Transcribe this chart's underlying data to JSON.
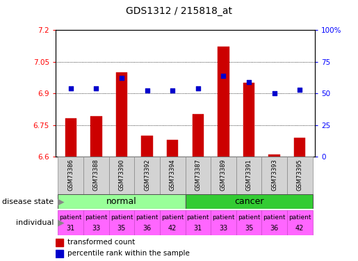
{
  "title": "GDS1312 / 215818_at",
  "samples": [
    "GSM73386",
    "GSM73388",
    "GSM73390",
    "GSM73392",
    "GSM73394",
    "GSM73387",
    "GSM73389",
    "GSM73391",
    "GSM73393",
    "GSM73395"
  ],
  "transformed_counts": [
    6.78,
    6.79,
    7.0,
    6.7,
    6.68,
    6.8,
    7.12,
    6.95,
    6.61,
    6.69
  ],
  "percentile_ranks": [
    54,
    54,
    62,
    52,
    52,
    54,
    64,
    59,
    50,
    53
  ],
  "ylim_left": [
    6.6,
    7.2
  ],
  "ylim_right": [
    0,
    100
  ],
  "yticks_left": [
    6.6,
    6.75,
    6.9,
    7.05,
    7.2
  ],
  "yticks_right": [
    0,
    25,
    50,
    75,
    100
  ],
  "ytick_labels_left": [
    "6.6",
    "6.75",
    "6.9",
    "7.05",
    "7.2"
  ],
  "ytick_labels_right": [
    "0",
    "25",
    "50",
    "75",
    "100%"
  ],
  "bar_color": "#cc0000",
  "dot_color": "#0000cc",
  "normal_color": "#99ff99",
  "cancer_color": "#33cc33",
  "individual_color": "#ff66ff",
  "patients": [
    "patient\n31",
    "patient\n33",
    "patient\n35",
    "patient\n36",
    "patient\n42",
    "patient\n31",
    "patient\n33",
    "patient\n35",
    "patient\n36",
    "patient\n42"
  ],
  "legend_bar_label": "transformed count",
  "legend_dot_label": "percentile rank within the sample",
  "disease_state_label": "disease state",
  "individual_label": "individual",
  "sample_bg_color": "#d3d3d3",
  "plot_bg": "#ffffff"
}
